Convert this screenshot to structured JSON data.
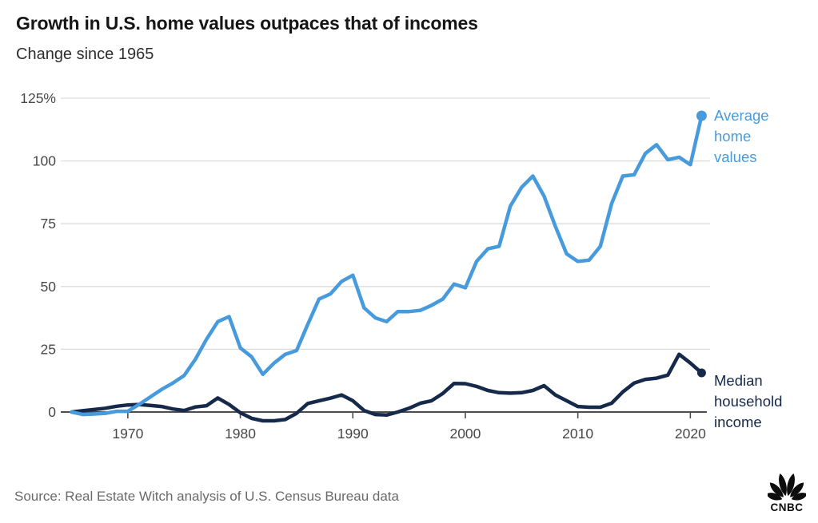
{
  "header": {
    "title": "Growth in U.S. home values outpaces that of incomes",
    "subtitle": "Change since 1965"
  },
  "chart_data": {
    "type": "line",
    "title": "Growth in U.S. home values outpaces that of incomes",
    "subtitle": "Change since 1965",
    "unit": "percent change since 1965",
    "x": [
      1965,
      1966,
      1967,
      1968,
      1969,
      1970,
      1971,
      1972,
      1973,
      1974,
      1975,
      1976,
      1977,
      1978,
      1979,
      1980,
      1981,
      1982,
      1983,
      1984,
      1985,
      1986,
      1987,
      1988,
      1989,
      1990,
      1991,
      1992,
      1993,
      1994,
      1995,
      1996,
      1997,
      1998,
      1999,
      2000,
      2001,
      2002,
      2003,
      2004,
      2005,
      2006,
      2007,
      2008,
      2009,
      2010,
      2011,
      2012,
      2013,
      2014,
      2015,
      2016,
      2017,
      2018,
      2019,
      2020,
      2021
    ],
    "series": [
      {
        "name": "Average home values",
        "label_display": "Average\nhome\nvalues",
        "color": "#479bdc",
        "end_dot": true,
        "values": [
          0,
          -1,
          -0.8,
          -0.5,
          0.3,
          0.3,
          3,
          6,
          9,
          11.5,
          14.5,
          21,
          29,
          36,
          38,
          25.5,
          22,
          15,
          19.5,
          23,
          24.5,
          35,
          45,
          47,
          52,
          54.5,
          41.5,
          37.5,
          36,
          40,
          40,
          40.5,
          42.5,
          45,
          51,
          49.5,
          60,
          65,
          66,
          82,
          89.5,
          94,
          86,
          74,
          63,
          60,
          60.5,
          66,
          83,
          94,
          94.5,
          103,
          106.5,
          100.5,
          101.5,
          98.5,
          118
        ]
      },
      {
        "name": "Median household income",
        "label_display": "Median\nhousehold\nincome",
        "color": "#15294b",
        "end_dot": true,
        "values": [
          0,
          0.5,
          1,
          1.5,
          2.3,
          2.8,
          3,
          2.6,
          2.2,
          1.2,
          0.6,
          2,
          2.5,
          5.6,
          3,
          -0.3,
          -2.5,
          -3.5,
          -3.5,
          -3,
          -0.5,
          3.4,
          4.5,
          5.5,
          6.8,
          4.5,
          0.6,
          -1,
          -1.2,
          0,
          1.5,
          3.5,
          4.5,
          7.4,
          11.4,
          11.3,
          10.2,
          8.6,
          7.7,
          7.5,
          7.7,
          8.6,
          10.5,
          6.8,
          4.5,
          2.2,
          1.9,
          1.9,
          3.5,
          8,
          11.5,
          13,
          13.5,
          14.7,
          23,
          19.5,
          15.6
        ]
      }
    ],
    "ytick_values": [
      0,
      25,
      50,
      75,
      100,
      125
    ],
    "ytick_labels": [
      "0",
      "25",
      "50",
      "75",
      "100",
      "125%"
    ],
    "xtick_values": [
      1970,
      1980,
      1990,
      2000,
      2010,
      2020
    ],
    "xtick_labels": [
      "1970",
      "1980",
      "1990",
      "2000",
      "2010",
      "2020"
    ],
    "ylim": [
      -6,
      125
    ],
    "xlim": [
      1965,
      2021
    ],
    "grid": "horizontal",
    "legend_position": "right-of-line-ends"
  },
  "colors": {
    "home_values_blue": "#479bdc",
    "income_navy": "#15294b",
    "axis_text": "#484848",
    "gridline": "#dbdbdb",
    "zero_line": "#4d4d4d",
    "title_text": "#161616",
    "source_text": "#6a6a6a",
    "logo_black": "#0d0d0d"
  },
  "footer": {
    "source": "Source: Real Estate Witch analysis of U.S. Census Bureau data",
    "logo_text": "CNBC"
  }
}
